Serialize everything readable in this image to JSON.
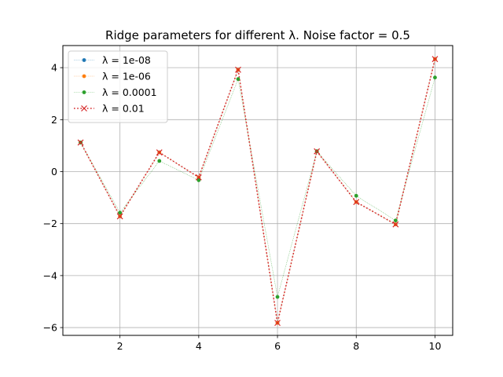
{
  "chart_data": {
    "type": "line",
    "title": "Ridge parameters for different λ. Noise factor = 0.5",
    "xlabel": "",
    "ylabel": "",
    "xlim": [
      0.55,
      10.45
    ],
    "ylim": [
      -6.3,
      4.85
    ],
    "grid": true,
    "legend_position": "upper-left",
    "x_ticks": [
      2,
      4,
      6,
      8,
      10
    ],
    "y_ticks": [
      -6,
      -4,
      -2,
      0,
      2,
      4
    ],
    "x": [
      1,
      2,
      3,
      4,
      5,
      6,
      7,
      8,
      9,
      10
    ],
    "series": [
      {
        "name": "λ = 1e-08",
        "color": "#1f77b4",
        "linestyle": "dotted-thin",
        "marker": "dot",
        "values": [
          1.12,
          -1.72,
          0.74,
          -0.22,
          3.92,
          -5.82,
          0.78,
          -1.17,
          -2.03,
          4.33
        ]
      },
      {
        "name": "λ = 1e-06",
        "color": "#ff7f0e",
        "linestyle": "dotted-thin",
        "marker": "dot",
        "values": [
          1.12,
          -1.72,
          0.74,
          -0.22,
          3.92,
          -5.82,
          0.78,
          -1.17,
          -2.03,
          4.33
        ]
      },
      {
        "name": "λ = 0.0001",
        "color": "#2ca02c",
        "linestyle": "dotted-thin",
        "marker": "dot",
        "values": [
          1.12,
          -1.58,
          0.41,
          -0.33,
          3.56,
          -4.82,
          0.78,
          -0.93,
          -1.88,
          3.62
        ]
      },
      {
        "name": "λ = 0.01",
        "color": "#d62728",
        "linestyle": "dotted-thick",
        "marker": "x",
        "values": [
          1.12,
          -1.72,
          0.74,
          -0.22,
          3.92,
          -5.82,
          0.78,
          -1.17,
          -2.03,
          4.33
        ]
      }
    ]
  }
}
